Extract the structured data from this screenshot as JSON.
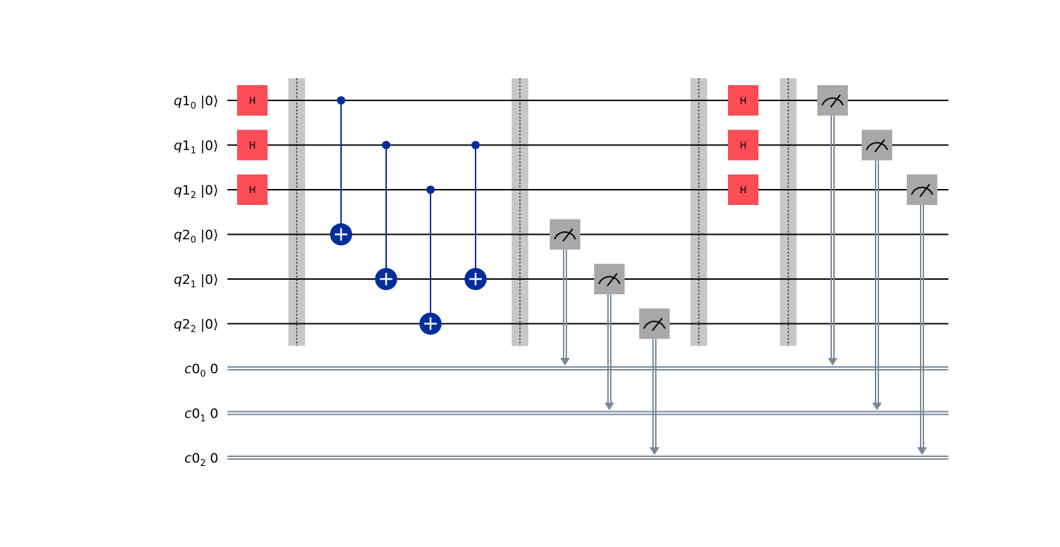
{
  "circuit": {
    "qubits": [
      {
        "reg": "q1",
        "index": "0",
        "init": "|0⟩"
      },
      {
        "reg": "q1",
        "index": "1",
        "init": "|0⟩"
      },
      {
        "reg": "q1",
        "index": "2",
        "init": "|0⟩"
      },
      {
        "reg": "q2",
        "index": "0",
        "init": "|0⟩"
      },
      {
        "reg": "q2",
        "index": "1",
        "init": "|0⟩"
      },
      {
        "reg": "q2",
        "index": "2",
        "init": "|0⟩"
      }
    ],
    "clbits": [
      {
        "reg": "c0",
        "index": "0",
        "init": "0"
      },
      {
        "reg": "c0",
        "index": "1",
        "init": "0"
      },
      {
        "reg": "c0",
        "index": "2",
        "init": "0"
      }
    ],
    "operations": [
      {
        "type": "h",
        "label": "H",
        "qubit": 0,
        "column": 0
      },
      {
        "type": "h",
        "label": "H",
        "qubit": 1,
        "column": 0
      },
      {
        "type": "h",
        "label": "H",
        "qubit": 2,
        "column": 0
      },
      {
        "type": "barrier",
        "column": 1
      },
      {
        "type": "cx",
        "control": 0,
        "target": 3,
        "column": 2
      },
      {
        "type": "cx",
        "control": 1,
        "target": 4,
        "column": 3
      },
      {
        "type": "cx",
        "control": 2,
        "target": 5,
        "column": 4
      },
      {
        "type": "cx",
        "control": 1,
        "target": 4,
        "column": 5
      },
      {
        "type": "barrier",
        "column": 6
      },
      {
        "type": "measure",
        "qubit": 3,
        "clbit": 0,
        "column": 7
      },
      {
        "type": "measure",
        "qubit": 4,
        "clbit": 1,
        "column": 8
      },
      {
        "type": "measure",
        "qubit": 5,
        "clbit": 2,
        "column": 9
      },
      {
        "type": "barrier",
        "column": 10
      },
      {
        "type": "h",
        "label": "H",
        "qubit": 0,
        "column": 11
      },
      {
        "type": "h",
        "label": "H",
        "qubit": 1,
        "column": 11
      },
      {
        "type": "h",
        "label": "H",
        "qubit": 2,
        "column": 11
      },
      {
        "type": "barrier",
        "column": 12
      },
      {
        "type": "measure",
        "qubit": 0,
        "clbit": 0,
        "column": 13
      },
      {
        "type": "measure",
        "qubit": 1,
        "clbit": 1,
        "column": 14
      },
      {
        "type": "measure",
        "qubit": 2,
        "clbit": 2,
        "column": 15
      }
    ],
    "colors": {
      "h_gate": "#fa4d56",
      "cx": "#002d9c",
      "measure": "#a8a8a8",
      "barrier": "#c7c7c7",
      "classical_wire": "#778899",
      "quantum_wire": "#000000"
    }
  }
}
